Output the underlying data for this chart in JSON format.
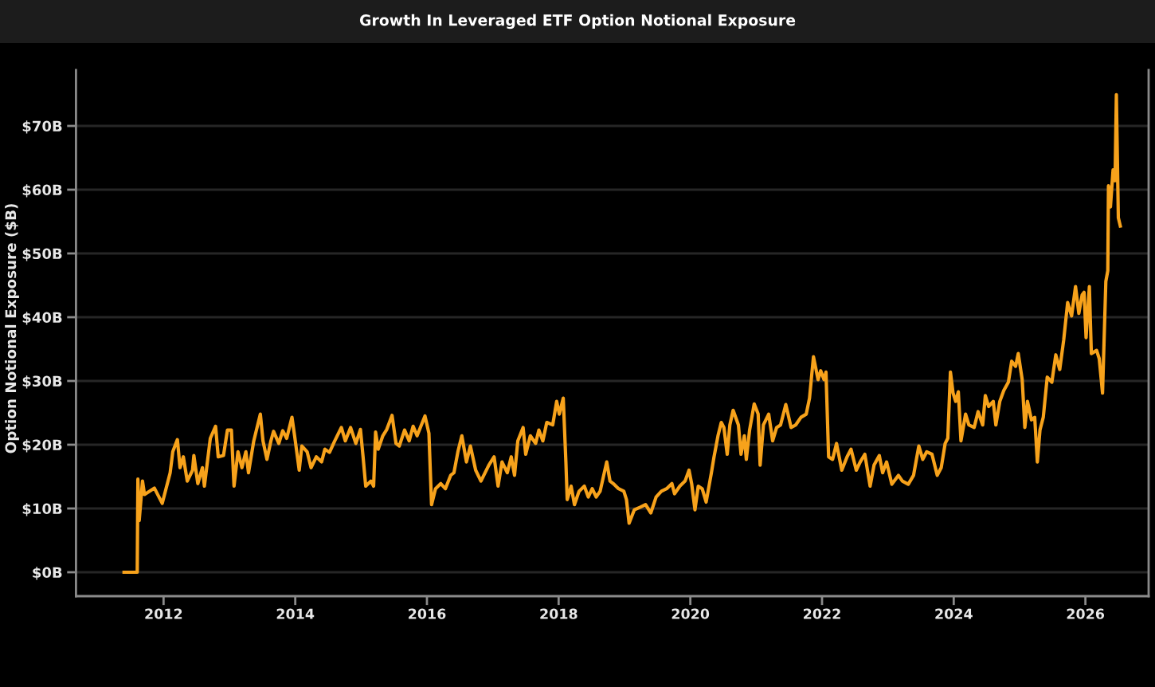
{
  "chart_data": {
    "type": "line",
    "title": "Growth In Leveraged ETF Option Notional Exposure",
    "ylabel": "Option Notional Exposure ($B)",
    "x": [
      2011.4,
      2011.6,
      2011.61,
      2011.63,
      2011.68,
      2011.71,
      2011.86,
      2011.98,
      2012.1,
      2012.14,
      2012.21,
      2012.25,
      2012.3,
      2012.36,
      2012.44,
      2012.46,
      2012.52,
      2012.59,
      2012.62,
      2012.71,
      2012.79,
      2012.83,
      2012.91,
      2012.97,
      2013.03,
      2013.07,
      2013.13,
      2013.19,
      2013.25,
      2013.29,
      2013.37,
      2013.47,
      2013.51,
      2013.57,
      2013.63,
      2013.67,
      2013.75,
      2013.81,
      2013.87,
      2013.95,
      2013.99,
      2014.06,
      2014.1,
      2014.18,
      2014.24,
      2014.32,
      2014.4,
      2014.45,
      2014.52,
      2014.6,
      2014.7,
      2014.76,
      2014.84,
      2014.92,
      2014.99,
      2015.03,
      2015.07,
      2015.15,
      2015.19,
      2015.22,
      2015.26,
      2015.33,
      2015.39,
      2015.47,
      2015.53,
      2015.58,
      2015.66,
      2015.73,
      2015.79,
      2015.85,
      2015.97,
      2016.03,
      2016.07,
      2016.13,
      2016.21,
      2016.28,
      2016.36,
      2016.41,
      2016.47,
      2016.53,
      2016.6,
      2016.66,
      2016.74,
      2016.82,
      2016.94,
      2017.02,
      2017.08,
      2017.14,
      2017.22,
      2017.28,
      2017.33,
      2017.38,
      2017.46,
      2017.5,
      2017.57,
      2017.65,
      2017.7,
      2017.76,
      2017.82,
      2017.91,
      2017.97,
      2018.01,
      2018.07,
      2018.11,
      2018.13,
      2018.19,
      2018.24,
      2018.31,
      2018.39,
      2018.45,
      2018.51,
      2018.57,
      2018.63,
      2018.73,
      2018.78,
      2018.83,
      2018.91,
      2018.99,
      2019.03,
      2019.07,
      2019.15,
      2019.24,
      2019.32,
      2019.4,
      2019.48,
      2019.56,
      2019.64,
      2019.72,
      2019.76,
      2019.84,
      2019.92,
      2019.98,
      2020.02,
      2020.07,
      2020.12,
      2020.18,
      2020.24,
      2020.32,
      2020.36,
      2020.42,
      2020.47,
      2020.51,
      2020.56,
      2020.6,
      2020.65,
      2020.73,
      2020.77,
      2020.82,
      2020.85,
      2020.9,
      2020.97,
      2021.03,
      2021.06,
      2021.11,
      2021.19,
      2021.25,
      2021.31,
      2021.37,
      2021.45,
      2021.53,
      2021.6,
      2021.68,
      2021.76,
      2021.81,
      2021.87,
      2021.94,
      2021.98,
      2022.03,
      2022.06,
      2022.1,
      2022.16,
      2022.22,
      2022.3,
      2022.38,
      2022.44,
      2022.52,
      2022.58,
      2022.65,
      2022.73,
      2022.79,
      2022.87,
      2022.92,
      2022.98,
      2023.06,
      2023.16,
      2023.22,
      2023.31,
      2023.39,
      2023.47,
      2023.53,
      2023.59,
      2023.67,
      2023.75,
      2023.81,
      2023.87,
      2023.91,
      2023.95,
      2023.99,
      2024.03,
      2024.07,
      2024.11,
      2024.18,
      2024.23,
      2024.31,
      2024.37,
      2024.44,
      2024.48,
      2024.53,
      2024.6,
      2024.64,
      2024.7,
      2024.76,
      2024.83,
      2024.88,
      2024.94,
      2024.98,
      2025.04,
      2025.08,
      2025.12,
      2025.18,
      2025.23,
      2025.27,
      2025.31,
      2025.36,
      2025.42,
      2025.49,
      2025.55,
      2025.61,
      2025.67,
      2025.73,
      2025.79,
      2025.85,
      2025.9,
      2025.95,
      2025.98,
      2026.01,
      2026.06,
      2026.09,
      2026.17,
      2026.21,
      2026.26,
      2026.31,
      2026.34,
      2026.35,
      2026.38,
      2026.42,
      2026.45,
      2026.47,
      2026.5,
      2026.53
    ],
    "series": [
      {
        "color": "#f7a21b",
        "values": [
          0,
          0,
          14.6,
          8.1,
          14.3,
          12.2,
          13.2,
          10.8,
          15.6,
          18.9,
          20.8,
          16.4,
          18.1,
          14.3,
          16.0,
          18.3,
          13.9,
          16.4,
          13.5,
          21.0,
          22.9,
          18.1,
          18.3,
          22.3,
          22.3,
          13.5,
          18.9,
          16.4,
          18.9,
          15.6,
          20.6,
          24.8,
          20.6,
          17.7,
          20.6,
          22.1,
          20.2,
          22.2,
          21.0,
          24.3,
          21.4,
          16.0,
          19.8,
          18.9,
          16.4,
          18.1,
          17.3,
          19.3,
          18.8,
          20.6,
          22.7,
          20.6,
          22.7,
          20.2,
          22.4,
          18.1,
          13.5,
          14.3,
          13.5,
          22.0,
          19.3,
          21.4,
          22.4,
          24.6,
          20.2,
          19.8,
          22.3,
          20.6,
          22.9,
          21.4,
          24.5,
          21.8,
          10.6,
          13.1,
          13.9,
          13.1,
          15.2,
          15.6,
          18.9,
          21.4,
          17.3,
          19.8,
          16.0,
          14.3,
          16.8,
          18.1,
          13.5,
          17.3,
          15.6,
          18.1,
          15.2,
          20.6,
          22.7,
          18.5,
          21.4,
          20.2,
          22.3,
          20.6,
          23.5,
          23.1,
          26.8,
          24.8,
          27.3,
          17.3,
          11.4,
          13.5,
          10.6,
          12.7,
          13.5,
          11.8,
          13.1,
          11.8,
          12.7,
          17.3,
          14.3,
          13.9,
          13.1,
          12.7,
          11.4,
          7.7,
          9.8,
          10.2,
          10.6,
          9.3,
          11.8,
          12.7,
          13.1,
          13.9,
          12.3,
          13.5,
          14.3,
          16.0,
          13.9,
          9.8,
          13.5,
          13.1,
          11.0,
          15.6,
          18.1,
          21.4,
          23.5,
          22.7,
          18.5,
          23.1,
          25.4,
          23.1,
          18.5,
          21.4,
          17.7,
          22.3,
          26.4,
          24.8,
          16.8,
          23.1,
          24.8,
          20.6,
          22.7,
          23.1,
          26.3,
          22.7,
          23.1,
          24.3,
          24.8,
          27.3,
          33.8,
          30.2,
          31.6,
          30.2,
          31.4,
          18.1,
          17.7,
          20.2,
          16.0,
          18.1,
          19.3,
          16.0,
          17.3,
          18.5,
          13.5,
          16.8,
          18.3,
          15.6,
          17.3,
          13.8,
          15.2,
          14.3,
          13.8,
          15.2,
          19.8,
          17.7,
          18.9,
          18.5,
          15.2,
          16.4,
          20.2,
          21.0,
          31.4,
          28.1,
          26.8,
          28.3,
          20.6,
          24.8,
          23.1,
          22.7,
          25.2,
          23.1,
          27.7,
          26.0,
          26.8,
          23.1,
          26.8,
          28.5,
          29.8,
          33.1,
          32.3,
          34.3,
          30.2,
          22.7,
          26.8,
          23.9,
          24.3,
          17.3,
          22.3,
          24.3,
          30.6,
          29.8,
          34.1,
          31.8,
          36.4,
          42.3,
          40.2,
          44.8,
          40.6,
          43.5,
          43.9,
          36.8,
          44.8,
          34.3,
          34.8,
          33.5,
          28.1,
          45.6,
          47.3,
          60.6,
          57.3,
          63.1,
          61.4,
          74.9,
          55.6,
          54.3
        ]
      }
    ],
    "xlim": [
      2010.67,
      2026.96
    ],
    "xticks": [
      2012,
      2014,
      2016,
      2018,
      2020,
      2022,
      2024,
      2026
    ],
    "ylim": [
      -3.75,
      78.75
    ],
    "yticks": [
      {
        "value": 0,
        "label": "$0B"
      },
      {
        "value": 10,
        "label": "$10B"
      },
      {
        "value": 20,
        "label": "$20B"
      },
      {
        "value": 30,
        "label": "$30B"
      },
      {
        "value": 40,
        "label": "$40B"
      },
      {
        "value": 50,
        "label": "$50B"
      },
      {
        "value": 60,
        "label": "$60B"
      },
      {
        "value": 70,
        "label": "$70B"
      }
    ],
    "grid": "y",
    "line_style": "solid"
  }
}
